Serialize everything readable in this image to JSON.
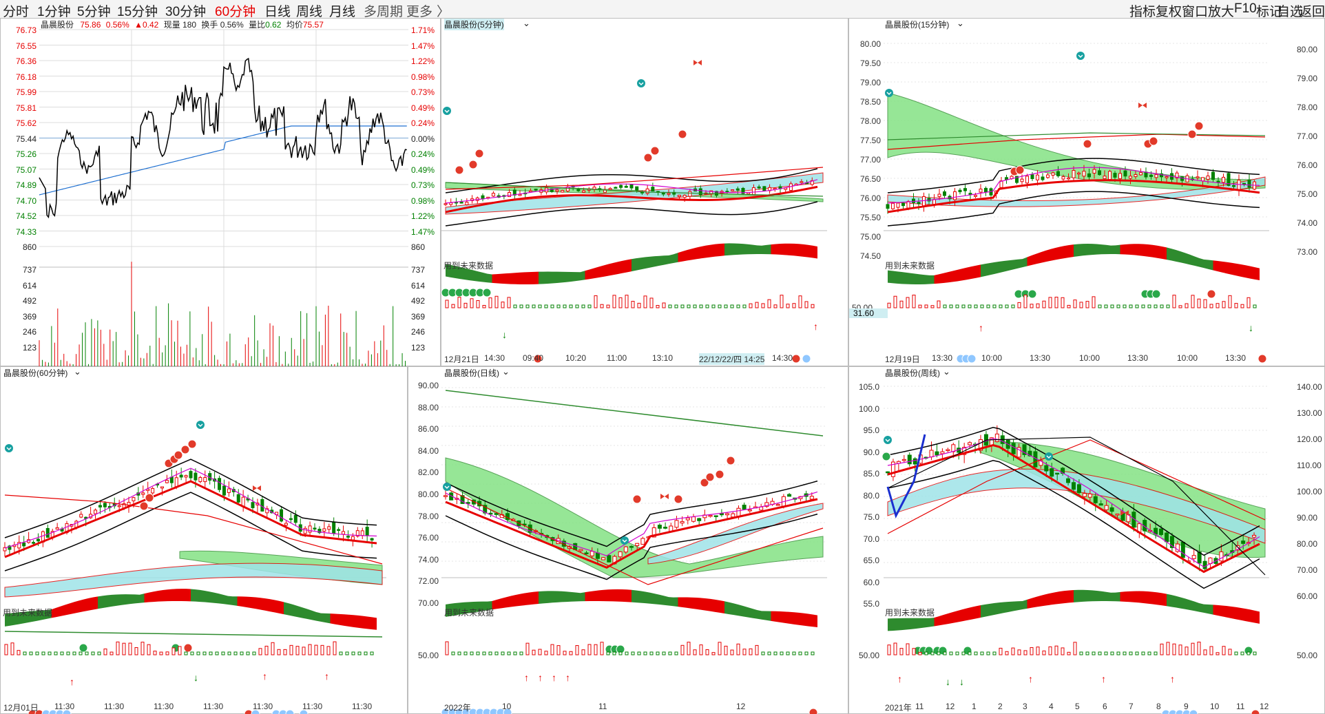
{
  "toolbar": {
    "periods": [
      "分时",
      "1分钟",
      "5分钟",
      "15分钟",
      "30分钟",
      "60分钟",
      "日线",
      "周线",
      "月线",
      "多周期",
      "更多",
      "〉"
    ],
    "active_period": "60分钟",
    "right_tools": [
      "指标",
      "复权",
      "窗口",
      "放大",
      "F10",
      "标记",
      "自选",
      "返回"
    ]
  },
  "intraday": {
    "title": "晶晨股份",
    "price": "75.86",
    "pct": "0.56%",
    "change": "▲0.42",
    "volume": "现量 180",
    "turnover": "换手 0.56%",
    "vol_ratio_label": "量比",
    "vol_ratio": "0.62",
    "avg_label": "均价",
    "avg": "75.57",
    "price_ticks": [
      "76.73",
      "76.55",
      "76.36",
      "76.18",
      "75.99",
      "75.81",
      "75.62",
      "75.44",
      "75.26",
      "75.07",
      "74.89",
      "74.70",
      "74.52",
      "74.33",
      "860"
    ],
    "pct_ticks": [
      "1.71%",
      "1.47%",
      "1.22%",
      "0.98%",
      "0.73%",
      "0.49%",
      "0.24%",
      "0.00%",
      "0.24%",
      "0.49%",
      "0.73%",
      "0.98%",
      "1.22%",
      "1.47%",
      "860"
    ],
    "vol_ticks": [
      "737",
      "614",
      "492",
      "369",
      "246",
      "123"
    ]
  },
  "p5": {
    "title": "晶晨股份(5分钟)",
    "note": "用到未来数据",
    "xlabels": [
      "12月21日",
      "14:30",
      "09:40",
      "10:20",
      "11:00",
      "13:10",
      "22/12/22/四 14:25",
      "14:30"
    ]
  },
  "p15": {
    "title": "晶晨股份(15分钟)",
    "note": "用到未来数据",
    "y_ticks": [
      "80.00",
      "79.50",
      "79.00",
      "78.50",
      "78.00",
      "77.50",
      "77.00",
      "76.50",
      "76.00",
      "75.50",
      "75.00",
      "74.50"
    ],
    "right_ticks": [
      "80.00",
      "79.00",
      "78.00",
      "77.00",
      "76.00",
      "75.00",
      "74.00",
      "73.00"
    ],
    "sub_tick": "50.00",
    "sub_value": "31.60",
    "xlabels": [
      "12月19日",
      "13:30",
      "10:00",
      "13:30",
      "10:00",
      "13:30",
      "10:00",
      "13:30"
    ]
  },
  "p60": {
    "title": "晶晨股份(60分钟)",
    "note": "用到未来数据",
    "xlabels": [
      "12月01日",
      "11:30",
      "11:30",
      "11:30",
      "11:30",
      "11:30",
      "11:30",
      "11:30"
    ]
  },
  "pday": {
    "title": "晶晨股份(日线)",
    "note": "用到未来数据",
    "y_ticks": [
      "90.00",
      "88.00",
      "86.00",
      "84.00",
      "82.00",
      "80.00",
      "78.00",
      "76.00",
      "74.00",
      "72.00",
      "70.00"
    ],
    "sub_tick": "50.00",
    "xlabels": [
      "2022年",
      "10",
      "11",
      "12"
    ]
  },
  "pweek": {
    "title": "晶晨股份(周线)",
    "note": "用到未来数据",
    "y_ticks": [
      "105.0",
      "100.0",
      "95.0",
      "90.0",
      "85.0",
      "80.0",
      "75.0",
      "70.0",
      "65.0",
      "60.0",
      "55.0"
    ],
    "right_ticks": [
      "140.00",
      "130.00",
      "120.00",
      "110.00",
      "100.00",
      "90.00",
      "80.00",
      "70.00",
      "60.00"
    ],
    "sub_tick": "50.00",
    "xlabels": [
      "2021年",
      "11",
      "12",
      "1",
      "2",
      "3",
      "4",
      "5",
      "6",
      "7",
      "8",
      "9",
      "10",
      "11",
      "12"
    ]
  },
  "colors": {
    "up": "#e60000",
    "down": "#008000",
    "band_green": "#7de07d",
    "band_cyan": "#9fe3e8",
    "price_line": "#000000",
    "avg_line": "#1e6fd0"
  },
  "icons": [
    "chevron-down-icon",
    "teal-down-arrow-icon",
    "red-badge-icon",
    "butterfly-icon",
    "green-badge-icon",
    "blue-badge-icon"
  ]
}
